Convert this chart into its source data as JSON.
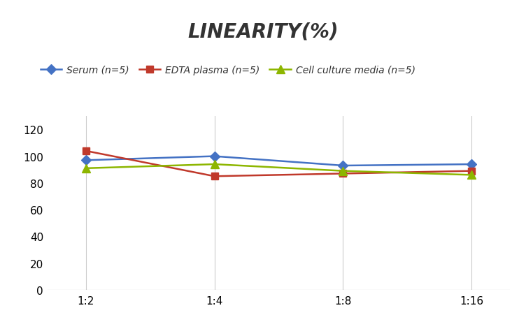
{
  "title": "LINEARITY(%)",
  "title_fontsize": 20,
  "title_fontstyle": "italic",
  "title_fontweight": "bold",
  "x_labels": [
    "1:2",
    "1:4",
    "1:8",
    "1:16"
  ],
  "x_positions": [
    0,
    1,
    2,
    3
  ],
  "series": [
    {
      "label": "Serum (n=5)",
      "values": [
        97,
        100,
        93,
        94
      ],
      "color": "#4472C4",
      "marker": "D",
      "markersize": 7,
      "linewidth": 1.8
    },
    {
      "label": "EDTA plasma (n=5)",
      "values": [
        104,
        85,
        87,
        89
      ],
      "color": "#C0392B",
      "marker": "s",
      "markersize": 7,
      "linewidth": 1.8
    },
    {
      "label": "Cell culture media (n=5)",
      "values": [
        91,
        94,
        89,
        86
      ],
      "color": "#8DB600",
      "marker": "^",
      "markersize": 8,
      "linewidth": 1.8
    }
  ],
  "ylim": [
    0,
    130
  ],
  "yticks": [
    0,
    20,
    40,
    60,
    80,
    100,
    120
  ],
  "background_color": "#ffffff",
  "grid_color": "#cccccc",
  "legend_fontsize": 10,
  "tick_fontsize": 11,
  "vertical_gridlines_at": [
    0,
    1,
    2,
    3
  ]
}
